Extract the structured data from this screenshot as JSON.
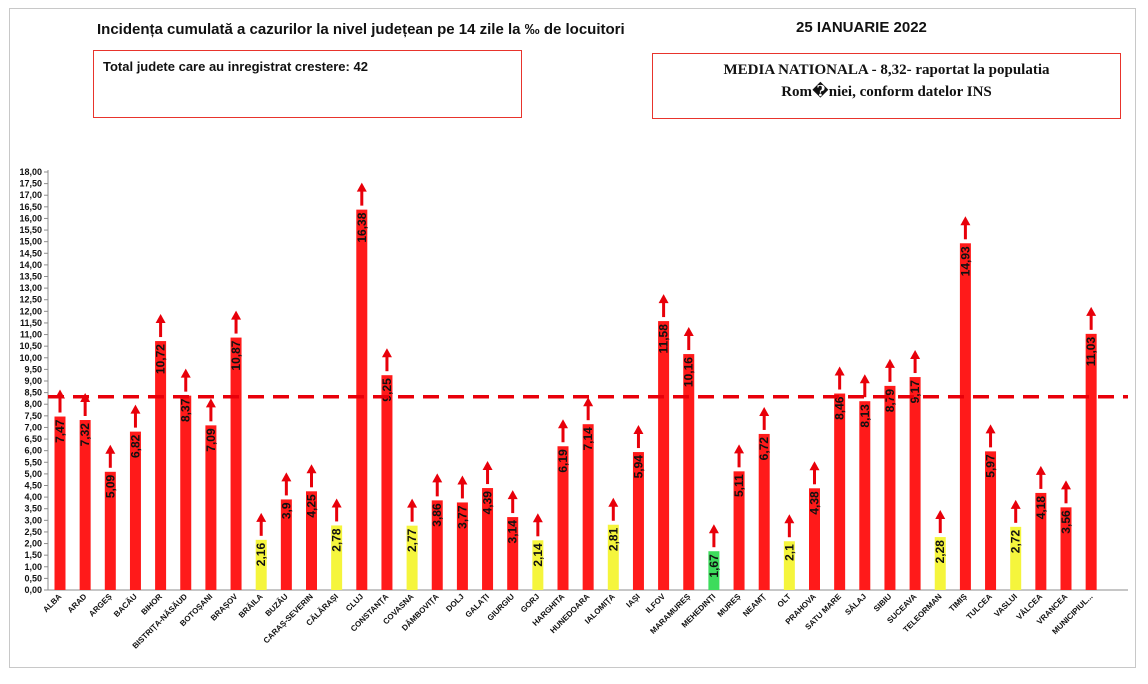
{
  "header": {
    "title": "Incidența cumulată a cazurilor la nivel județean pe 14 zile la ‰ de locuitori",
    "date": "25 IANUARIE 2022"
  },
  "info_left": {
    "text": "Total judete care au inregistrat crestere: 42"
  },
  "info_right": {
    "line1": "MEDIA NATIONALA - 8,32-  raportat la populatia",
    "line2": "Rom�niei, conform datelor INS"
  },
  "colors": {
    "bar_red": "#ff1a1a",
    "bar_yellow": "#f5f53c",
    "bar_green": "#3ddc5c",
    "arrow": "#e8000a",
    "reference_line": "#e8000a",
    "box_border": "#e8342c"
  },
  "chart_data": {
    "type": "bar",
    "title": "Incidența cumulată a cazurilor la nivel județean pe 14 zile la ‰ de locuitori",
    "xlabel": "",
    "ylabel": "",
    "ylim": [
      0,
      18
    ],
    "ytick_step": 0.5,
    "grid": false,
    "legend": "none",
    "reference_line": {
      "value": 8.32,
      "style": "dashed"
    },
    "trend_arrows": "up",
    "categories": [
      "ALBA",
      "ARAD",
      "ARGEȘ",
      "BACĂU",
      "BIHOR",
      "BISTRIȚA-NĂSĂUD",
      "BOTOȘANI",
      "BRAȘOV",
      "BRĂILA",
      "BUZĂU",
      "CARAȘ-SEVERIN",
      "CĂLĂRAȘI",
      "CLUJ",
      "CONSTANȚA",
      "COVASNA",
      "DÂMBOVIȚA",
      "DOLJ",
      "GALAȚI",
      "GIURGIU",
      "GORJ",
      "HARGHITA",
      "HUNEDOARA",
      "IALOMIȚA",
      "IAȘI",
      "ILFOV",
      "MARAMUREȘ",
      "MEHEDINȚI",
      "MUREȘ",
      "NEAMȚ",
      "OLT",
      "PRAHOVA",
      "SATU MARE",
      "SĂLAJ",
      "SIBIU",
      "SUCEAVA",
      "TELEORMAN",
      "TIMIȘ",
      "TULCEA",
      "VASLUI",
      "VÂLCEA",
      "VRANCEA",
      "MUNICIPIUL..."
    ],
    "values": [
      7.47,
      7.32,
      5.09,
      6.82,
      10.72,
      8.37,
      7.09,
      10.87,
      2.16,
      3.9,
      4.25,
      2.78,
      16.38,
      9.25,
      2.77,
      3.86,
      3.77,
      4.39,
      3.14,
      2.14,
      6.19,
      7.14,
      2.81,
      5.94,
      11.58,
      10.16,
      1.67,
      5.11,
      6.72,
      2.1,
      4.38,
      8.46,
      8.13,
      8.79,
      9.17,
      2.28,
      14.93,
      5.97,
      2.72,
      4.18,
      3.56,
      11.03
    ],
    "value_labels": [
      "7,47",
      "7,32",
      "5,09",
      "6,82",
      "10,72",
      "8,37",
      "7,09",
      "10,87",
      "2,16",
      "3,9",
      "4,25",
      "2,78",
      "16,38",
      "9,25",
      "2,77",
      "3,86",
      "3,77",
      "4,39",
      "3,14",
      "2,14",
      "6,19",
      "7,14",
      "2,81",
      "5,94",
      "11,58",
      "10,16",
      "1,67",
      "5,11",
      "6,72",
      "2,1",
      "4,38",
      "8,46",
      "8,13",
      "8,79",
      "9,17",
      "2,28",
      "14,93",
      "5,97",
      "2,72",
      "4,18",
      "3,56",
      "11,03"
    ],
    "bar_colors": [
      "red",
      "red",
      "red",
      "red",
      "red",
      "red",
      "red",
      "red",
      "yellow",
      "red",
      "red",
      "yellow",
      "red",
      "red",
      "yellow",
      "red",
      "red",
      "red",
      "red",
      "yellow",
      "red",
      "red",
      "yellow",
      "red",
      "red",
      "red",
      "green",
      "red",
      "red",
      "yellow",
      "red",
      "red",
      "red",
      "red",
      "red",
      "yellow",
      "red",
      "red",
      "yellow",
      "red",
      "red",
      "red"
    ],
    "yticks": [
      "0,00",
      "0,50",
      "1,00",
      "1,50",
      "2,00",
      "2,50",
      "3,00",
      "3,50",
      "4,00",
      "4,50",
      "5,00",
      "5,50",
      "6,00",
      "6,50",
      "7,00",
      "7,50",
      "8,00",
      "8,50",
      "9,00",
      "9,50",
      "10,00",
      "10,50",
      "11,00",
      "11,50",
      "12,00",
      "12,50",
      "13,00",
      "13,50",
      "14,00",
      "14,50",
      "15,00",
      "15,50",
      "16,00",
      "16,50",
      "17,00",
      "17,50",
      "18,00"
    ]
  }
}
